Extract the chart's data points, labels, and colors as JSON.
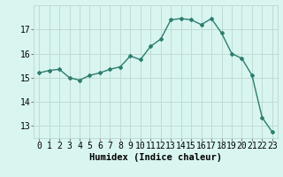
{
  "x": [
    0,
    1,
    2,
    3,
    4,
    5,
    6,
    7,
    8,
    9,
    10,
    11,
    12,
    13,
    14,
    15,
    16,
    17,
    18,
    19,
    20,
    21,
    22,
    23
  ],
  "y": [
    15.2,
    15.3,
    15.35,
    15.0,
    14.9,
    15.1,
    15.2,
    15.35,
    15.45,
    15.9,
    15.75,
    16.3,
    16.6,
    17.4,
    17.45,
    17.4,
    17.2,
    17.45,
    16.85,
    16.0,
    15.8,
    15.1,
    13.35,
    12.75
  ],
  "xlabel": "Humidex (Indice chaleur)",
  "ylabel": "",
  "xlim": [
    -0.5,
    23.5
  ],
  "ylim": [
    12.5,
    18.0
  ],
  "yticks": [
    13,
    14,
    15,
    16,
    17
  ],
  "xticks": [
    0,
    1,
    2,
    3,
    4,
    5,
    6,
    7,
    8,
    9,
    10,
    11,
    12,
    13,
    14,
    15,
    16,
    17,
    18,
    19,
    20,
    21,
    22,
    23
  ],
  "line_color": "#2d7d6e",
  "marker": "D",
  "marker_size": 2,
  "bg_color": "#d8f5f0",
  "grid_color": "#c0dbd6",
  "xlabel_fontsize": 7.5,
  "tick_fontsize": 7,
  "line_width": 1.0
}
